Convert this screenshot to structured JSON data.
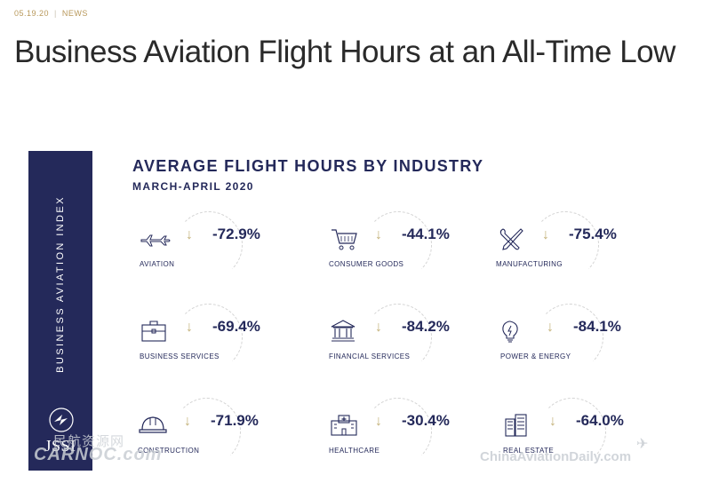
{
  "meta": {
    "date": "05.19.20",
    "separator": "|",
    "category": "NEWS"
  },
  "headline": "Business Aviation Flight Hours at an All-Time Low",
  "sidebar": {
    "vertical_text": "BUSINESS AVIATION INDEX",
    "logo_text": "JSSI"
  },
  "infographic": {
    "title": "AVERAGE FLIGHT HOURS BY INDUSTRY",
    "subtitle": "MARCH-APRIL 2020",
    "arrow_glyph": "↓",
    "items": [
      {
        "label": "AVIATION",
        "value": "-72.9%",
        "icon": "airplane-icon"
      },
      {
        "label": "CONSUMER GOODS",
        "value": "-44.1%",
        "icon": "shopping-cart-icon"
      },
      {
        "label": "MANUFACTURING",
        "value": "-75.4%",
        "icon": "tools-icon"
      },
      {
        "label": "BUSINESS SERVICES",
        "value": "-69.4%",
        "icon": "briefcase-icon"
      },
      {
        "label": "FINANCIAL SERVICES",
        "value": "-84.2%",
        "icon": "bank-icon"
      },
      {
        "label": "POWER & ENERGY",
        "value": "-84.1%",
        "icon": "lightbulb-icon"
      },
      {
        "label": "CONSTRUCTION",
        "value": "-71.9%",
        "icon": "hard-hat-icon"
      },
      {
        "label": "HEALTHCARE",
        "value": "-30.4%",
        "icon": "hospital-icon"
      },
      {
        "label": "REAL ESTATE",
        "value": "-64.0%",
        "icon": "buildings-icon"
      }
    ]
  },
  "watermarks": {
    "left_cn": "民航资源网",
    "left_latin": "CARNOC.com",
    "right": "ChinaAviationDaily.com"
  },
  "colors": {
    "navy": "#24295a",
    "gold_accent": "#c4b27a",
    "meta_gold": "#b8985a"
  }
}
